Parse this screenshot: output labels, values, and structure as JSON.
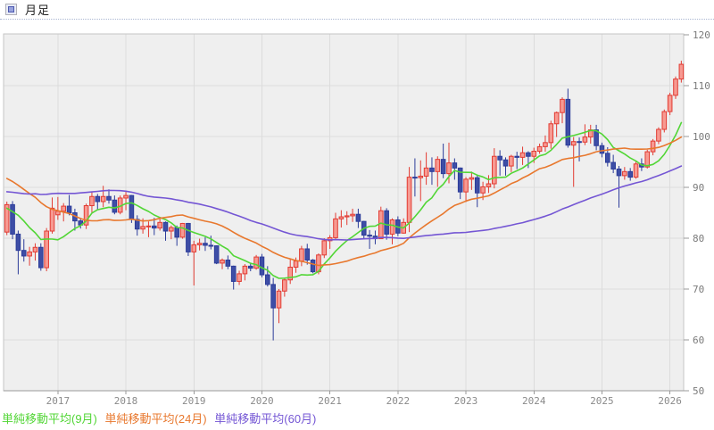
{
  "header": {
    "title": "月足"
  },
  "chart_data": {
    "type": "candlestick",
    "title": "月足",
    "period": "monthly",
    "start_month": "2016-04",
    "ylim": [
      50,
      120
    ],
    "grid": true,
    "y_ticks": [
      120,
      110,
      100,
      90,
      80,
      70,
      60,
      50
    ],
    "x_ticks": [
      {
        "label": "2017",
        "month_index": 9
      },
      {
        "label": "2018",
        "month_index": 21
      },
      {
        "label": "2019",
        "month_index": 33
      },
      {
        "label": "2020",
        "month_index": 45
      },
      {
        "label": "2021",
        "month_index": 57
      },
      {
        "label": "2022",
        "month_index": 69
      },
      {
        "label": "2023",
        "month_index": 81
      },
      {
        "label": "2024",
        "month_index": 93
      },
      {
        "label": "2025",
        "month_index": 105
      },
      {
        "label": "2026",
        "month_index": 117
      }
    ],
    "candles": [
      [
        81.2,
        87.2,
        80.6,
        86.6
      ],
      [
        86.6,
        87.3,
        79.8,
        80.8
      ],
      [
        80.8,
        81.5,
        72.9,
        77.6
      ],
      [
        77.6,
        79.8,
        75.4,
        76.5
      ],
      [
        76.5,
        78.3,
        74.6,
        77.3
      ],
      [
        77.3,
        79.0,
        75.6,
        78.2
      ],
      [
        78.2,
        79.0,
        73.6,
        74.2
      ],
      [
        74.2,
        82.0,
        73.5,
        81.4
      ],
      [
        81.4,
        88.0,
        80.9,
        85.9
      ],
      [
        84.6,
        88.1,
        83.6,
        85.3
      ],
      [
        85.3,
        86.9,
        83.3,
        86.3
      ],
      [
        86.3,
        88.5,
        84.5,
        85.0
      ],
      [
        85.0,
        85.8,
        81.5,
        83.4
      ],
      [
        83.4,
        84.0,
        81.9,
        82.6
      ],
      [
        82.6,
        86.8,
        81.8,
        86.4
      ],
      [
        86.4,
        89.1,
        84.9,
        88.2
      ],
      [
        88.2,
        88.7,
        85.6,
        87.2
      ],
      [
        87.2,
        90.3,
        86.1,
        88.2
      ],
      [
        88.2,
        89.6,
        86.8,
        87.5
      ],
      [
        87.5,
        88.4,
        84.7,
        85.1
      ],
      [
        85.1,
        88.4,
        84.7,
        87.9
      ],
      [
        87.9,
        89.1,
        85.5,
        88.4
      ],
      [
        88.4,
        88.5,
        83.0,
        83.7
      ],
      [
        83.7,
        84.5,
        80.5,
        81.8
      ],
      [
        81.8,
        83.9,
        80.9,
        82.3
      ],
      [
        82.3,
        83.3,
        80.2,
        82.4
      ],
      [
        82.4,
        84.0,
        80.6,
        82.0
      ],
      [
        82.0,
        83.9,
        81.5,
        83.1
      ],
      [
        83.1,
        83.3,
        79.5,
        81.4
      ],
      [
        81.4,
        82.5,
        79.8,
        82.1
      ],
      [
        82.1,
        82.5,
        78.5,
        80.2
      ],
      [
        80.2,
        83.0,
        79.9,
        82.9
      ],
      [
        82.9,
        83.0,
        76.5,
        77.3
      ],
      [
        77.3,
        79.5,
        70.7,
        78.7
      ],
      [
        78.7,
        79.9,
        77.6,
        79.0
      ],
      [
        79.0,
        80.2,
        77.5,
        78.6
      ],
      [
        78.6,
        80.5,
        77.8,
        78.5
      ],
      [
        78.5,
        78.6,
        74.9,
        75.1
      ],
      [
        75.1,
        76.0,
        73.9,
        75.7
      ],
      [
        75.7,
        76.6,
        73.9,
        74.5
      ],
      [
        74.5,
        74.6,
        69.9,
        71.5
      ],
      [
        71.5,
        73.6,
        70.8,
        73.0
      ],
      [
        73.0,
        74.9,
        71.7,
        74.5
      ],
      [
        74.5,
        75.1,
        73.5,
        74.1
      ],
      [
        74.1,
        76.7,
        73.8,
        76.3
      ],
      [
        76.3,
        76.9,
        72.3,
        72.8
      ],
      [
        72.8,
        74.5,
        70.5,
        70.9
      ],
      [
        70.9,
        72.2,
        59.9,
        66.3
      ],
      [
        66.3,
        70.0,
        63.3,
        69.6
      ],
      [
        69.6,
        72.0,
        68.5,
        71.8
      ],
      [
        71.8,
        76.0,
        71.0,
        74.3
      ],
      [
        74.3,
        76.2,
        73.2,
        75.5
      ],
      [
        75.5,
        78.5,
        74.5,
        77.9
      ],
      [
        77.9,
        78.9,
        74.8,
        75.7
      ],
      [
        75.7,
        75.9,
        73.1,
        73.4
      ],
      [
        73.4,
        77.0,
        72.9,
        76.7
      ],
      [
        76.7,
        80.0,
        76.1,
        79.5
      ],
      [
        79.5,
        80.6,
        77.9,
        80.1
      ],
      [
        80.1,
        85.0,
        79.8,
        83.8
      ],
      [
        83.8,
        85.5,
        82.1,
        84.2
      ],
      [
        84.2,
        85.3,
        82.6,
        84.4
      ],
      [
        84.4,
        85.8,
        83.2,
        84.7
      ],
      [
        84.7,
        85.8,
        82.0,
        83.3
      ],
      [
        83.3,
        83.4,
        79.8,
        80.6
      ],
      [
        80.6,
        81.6,
        77.9,
        80.4
      ],
      [
        80.4,
        81.5,
        78.8,
        79.9
      ],
      [
        79.9,
        86.2,
        79.9,
        85.4
      ],
      [
        85.4,
        85.9,
        79.7,
        80.8
      ],
      [
        80.8,
        83.9,
        78.8,
        83.6
      ],
      [
        83.6,
        84.3,
        80.4,
        81.0
      ],
      [
        81.0,
        83.9,
        80.9,
        83.1
      ],
      [
        83.1,
        94.0,
        81.2,
        92.0
      ],
      [
        92.0,
        95.7,
        88.2,
        91.9
      ],
      [
        91.9,
        95.3,
        87.3,
        92.2
      ],
      [
        92.2,
        96.9,
        90.5,
        93.8
      ],
      [
        93.8,
        95.9,
        90.5,
        93.1
      ],
      [
        93.1,
        96.1,
        90.1,
        95.5
      ],
      [
        95.5,
        98.6,
        91.8,
        92.7
      ],
      [
        92.7,
        98.8,
        90.8,
        94.8
      ],
      [
        94.8,
        95.7,
        91.5,
        93.8
      ],
      [
        93.8,
        93.9,
        87.7,
        89.1
      ],
      [
        89.1,
        92.0,
        87.1,
        91.6
      ],
      [
        91.6,
        93.1,
        89.5,
        91.9
      ],
      [
        91.9,
        92.4,
        86.1,
        88.9
      ],
      [
        88.9,
        91.1,
        87.5,
        90.1
      ],
      [
        90.1,
        92.4,
        88.9,
        90.7
      ],
      [
        90.7,
        97.7,
        89.8,
        96.1
      ],
      [
        96.1,
        97.3,
        92.3,
        95.4
      ],
      [
        95.4,
        95.9,
        92.3,
        94.2
      ],
      [
        94.2,
        96.4,
        93.0,
        96.1
      ],
      [
        96.1,
        97.0,
        93.6,
        95.9
      ],
      [
        95.9,
        98.0,
        94.4,
        96.8
      ],
      [
        96.8,
        97.1,
        93.8,
        96.1
      ],
      [
        96.1,
        97.8,
        94.8,
        97.1
      ],
      [
        97.1,
        98.6,
        96.6,
        98.0
      ],
      [
        98.0,
        100.2,
        97.0,
        98.8
      ],
      [
        98.8,
        103.1,
        97.6,
        102.5
      ],
      [
        102.5,
        104.9,
        99.9,
        104.7
      ],
      [
        104.7,
        107.7,
        102.6,
        107.3
      ],
      [
        107.3,
        109.4,
        97.8,
        98.3
      ],
      [
        98.3,
        99.9,
        90.1,
        99.0
      ],
      [
        99.0,
        99.8,
        95.1,
        98.9
      ],
      [
        98.9,
        102.4,
        98.3,
        99.9
      ],
      [
        99.9,
        102.3,
        98.6,
        101.3
      ],
      [
        101.3,
        102.3,
        97.3,
        98.2
      ],
      [
        98.2,
        98.8,
        95.9,
        96.7
      ],
      [
        96.7,
        97.9,
        94.1,
        94.9
      ],
      [
        94.9,
        96.4,
        92.8,
        93.6
      ],
      [
        93.6,
        94.2,
        86.0,
        92.3
      ],
      [
        92.3,
        94.0,
        91.5,
        93.1
      ],
      [
        93.1,
        93.8,
        91.3,
        92.0
      ],
      [
        92.0,
        95.2,
        91.7,
        94.6
      ],
      [
        94.6,
        95.7,
        93.2,
        94.0
      ],
      [
        94.0,
        97.4,
        93.7,
        97.0
      ],
      [
        97.0,
        99.5,
        96.3,
        99.1
      ],
      [
        99.1,
        101.8,
        98.5,
        101.4
      ],
      [
        101.4,
        105.3,
        100.8,
        104.9
      ],
      [
        104.9,
        108.6,
        104.2,
        108.1
      ],
      [
        108.1,
        111.8,
        107.4,
        111.3
      ],
      [
        111.3,
        114.9,
        110.6,
        114.2
      ]
    ],
    "pre_closes": [
      90.0,
      87.0,
      86.5,
      84.5,
      82.0,
      74.5,
      82.5,
      79.5,
      79.0,
      81.0,
      87.0,
      85.5,
      83.0,
      76.0,
      81.5,
      82.0,
      81.0,
      81.0,
      83.0,
      86.0,
      90.0,
      95.0,
      95.0,
      98.0,
      101.0,
      96.5,
      90.5,
      88.5,
      87.5,
      91.5,
      93.0,
      93.5,
      94.0,
      89.5,
      91.0,
      95.5,
      94.5,
      95.0,
      95.5,
      95.5,
      97.0,
      96.0,
      99.0,
      101.0,
      98.0,
      91.5,
      93.5,
      91.5,
      95.0,
      95.0,
      94.5,
      90.5,
      87.0,
      84.0,
      86.5,
      89.0,
      87.5,
      86.0,
      80.5,
      86.0
    ],
    "moving_averages": [
      {
        "label": "単純移動平均(9月)",
        "window": 9,
        "color": "#52d636"
      },
      {
        "label": "単純移動平均(24月)",
        "window": 24,
        "color": "#e8782e"
      },
      {
        "label": "単純移動平均(60月)",
        "window": 60,
        "color": "#7456d4"
      }
    ],
    "colors": {
      "background": "#efefef",
      "grid": "#dcdcdc",
      "frame": "#c6c6c6",
      "axis": "#9a9a9a",
      "y_tick_label": "#7a7a7a",
      "x_tick_label": "#8a8a8a",
      "up_stroke": "#e23b32",
      "up_fill": "#f79a92",
      "down_stroke": "#2c3c9a",
      "down_fill": "#3e4ea6"
    }
  }
}
